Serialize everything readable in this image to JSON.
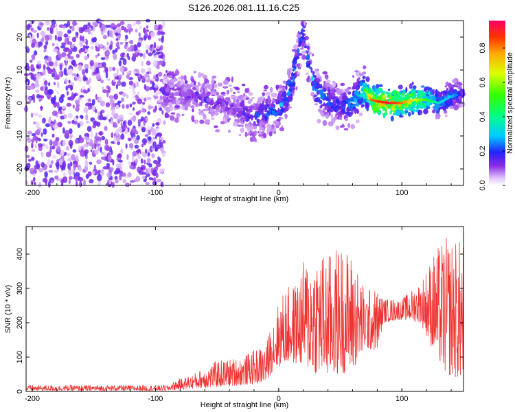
{
  "title": "S126.2026.081.11.16.C25",
  "chart_data": [
    {
      "type": "heatmap",
      "title": "S126.2026.081.11.16.C25",
      "xlabel": "Height of straight line (km)",
      "ylabel": "Frequency (Hz)",
      "xlim": [
        -205,
        150
      ],
      "ylim": [
        -25,
        25
      ],
      "xticks": [
        -200,
        -100,
        0,
        100
      ],
      "yticks": [
        -20,
        -10,
        0,
        10,
        20
      ],
      "colorbar": {
        "label": "Normalized spectral amplitude",
        "range": [
          0,
          0.96
        ],
        "ticks": [
          0.0,
          0.2,
          0.4,
          0.6,
          0.8
        ]
      },
      "ridge": {
        "x": [
          -95,
          -80,
          -60,
          -40,
          -20,
          0,
          10,
          20,
          25,
          30,
          40,
          50,
          60,
          70,
          75,
          80,
          90,
          100,
          110,
          120,
          130,
          140,
          150
        ],
        "freq": [
          3,
          3,
          1,
          -1,
          -4,
          -2,
          5,
          22,
          10,
          4,
          1,
          -1,
          0,
          4,
          1,
          0.5,
          0,
          0,
          1,
          1,
          0,
          2,
          3
        ],
        "amplitude": [
          0.2,
          0.15,
          0.2,
          0.15,
          0.25,
          0.3,
          0.35,
          0.3,
          0.4,
          0.35,
          0.3,
          0.25,
          0.35,
          0.55,
          0.85,
          0.9,
          0.95,
          0.85,
          0.7,
          0.55,
          0.35,
          0.3,
          0.2
        ]
      }
    },
    {
      "type": "line",
      "title": "",
      "xlabel": "Height of straight line (km)",
      "ylabel": "SNR (10 * v/v)",
      "xlim": [
        -205,
        150
      ],
      "ylim": [
        0,
        480
      ],
      "xticks": [
        -200,
        -100,
        0,
        100
      ],
      "yticks": [
        0,
        100,
        200,
        300,
        400
      ],
      "series": [
        {
          "name": "SNR",
          "color": "#ee3333",
          "envelope_x": [
            -205,
            -90,
            -85,
            -70,
            -50,
            -30,
            -10,
            -5,
            5,
            15,
            20,
            30,
            40,
            50,
            60,
            70,
            80,
            85,
            100,
            115,
            125,
            135,
            150
          ],
          "envelope_low": [
            2,
            2,
            4,
            8,
            12,
            18,
            25,
            60,
            80,
            80,
            70,
            50,
            40,
            50,
            60,
            120,
            120,
            200,
            210,
            200,
            120,
            50,
            30
          ],
          "envelope_high": [
            18,
            18,
            30,
            50,
            90,
            100,
            140,
            220,
            300,
            320,
            380,
            420,
            400,
            430,
            400,
            300,
            300,
            270,
            270,
            320,
            400,
            450,
            440
          ]
        }
      ]
    }
  ]
}
